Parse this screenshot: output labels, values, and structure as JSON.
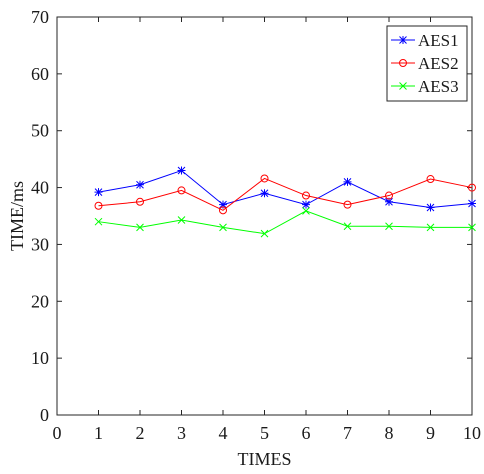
{
  "chart_data": {
    "type": "line",
    "title": "",
    "xlabel": "TIMES",
    "ylabel": "TIME/ms",
    "xlim": [
      0,
      10
    ],
    "ylim": [
      0,
      70
    ],
    "xticks": [
      0,
      1,
      2,
      3,
      4,
      5,
      6,
      7,
      8,
      9,
      10
    ],
    "yticks": [
      0,
      10,
      20,
      30,
      40,
      50,
      60,
      70
    ],
    "grid": false,
    "legend_position": "top-right",
    "x": [
      1,
      2,
      3,
      4,
      5,
      6,
      7,
      8,
      9,
      10
    ],
    "series": [
      {
        "name": "AES1",
        "color": "#0000ff",
        "marker": "asterisk",
        "values": [
          39.2,
          40.5,
          43.0,
          37.0,
          39.0,
          37.0,
          41.0,
          37.5,
          36.5,
          37.2
        ]
      },
      {
        "name": "AES2",
        "color": "#ff0000",
        "marker": "circle",
        "values": [
          36.8,
          37.5,
          39.5,
          36.0,
          41.6,
          38.6,
          37.0,
          38.6,
          41.5,
          40.0
        ]
      },
      {
        "name": "AES3",
        "color": "#00ff00",
        "marker": "x",
        "values": [
          34.0,
          33.0,
          34.3,
          33.0,
          31.9,
          35.9,
          33.2,
          33.2,
          33.0,
          33.0
        ]
      }
    ]
  }
}
